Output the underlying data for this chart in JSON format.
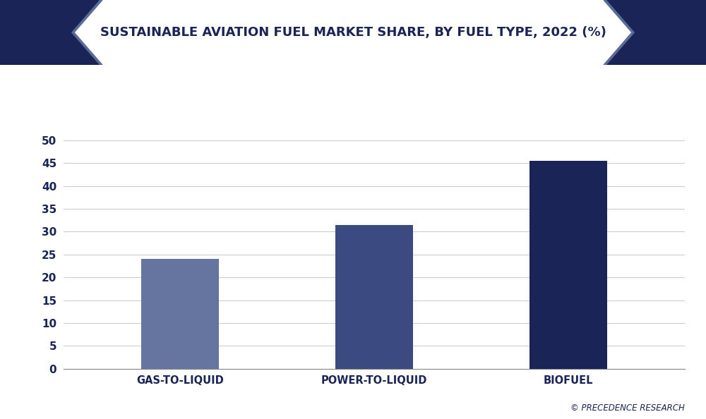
{
  "title": "SUSTAINABLE AVIATION FUEL MARKET SHARE, BY FUEL TYPE, 2022 (%)",
  "categories": [
    "GAS-TO-LIQUID",
    "POWER-TO-LIQUID",
    "BIOFUEL"
  ],
  "values": [
    24.0,
    31.5,
    45.5
  ],
  "bar_colors": [
    "#6674a0",
    "#3b4a80",
    "#1a2456"
  ],
  "background_color": "#ffffff",
  "plot_bg_color": "#ffffff",
  "outer_bg_color": "#ffffff",
  "title_color": "#1a2456",
  "tick_label_color": "#1a2456",
  "grid_color": "#cccccc",
  "ylim": [
    0,
    55
  ],
  "yticks": [
    0,
    5,
    10,
    15,
    20,
    25,
    30,
    35,
    40,
    45,
    50
  ],
  "title_fontsize": 13,
  "tick_fontsize": 11,
  "xlabel_fontsize": 10.5,
  "watermark": "© PRECEDENCE RESEARCH",
  "title_bg_color": "#f0f0f5",
  "header_dark_color": "#1a2456",
  "header_mid_color": "#5a6a99",
  "bar_width": 0.4
}
